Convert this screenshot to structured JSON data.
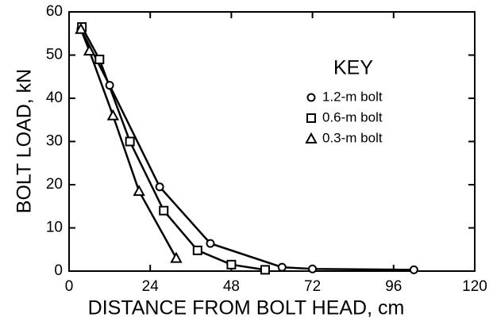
{
  "chart_data": {
    "type": "line",
    "xlabel": "DISTANCE FROM BOLT HEAD, cm",
    "ylabel": "BOLT LOAD, kN",
    "legend_title": "KEY",
    "legend_position": "upper right",
    "xlim": [
      0,
      120
    ],
    "xticks": [
      0,
      24,
      48,
      72,
      96,
      120
    ],
    "ylim": [
      0,
      60
    ],
    "yticks": [
      0,
      10,
      20,
      30,
      40,
      50,
      60
    ],
    "series": [
      {
        "name": "1.2-m bolt",
        "marker": "circle",
        "color": "#000000",
        "x": [
          3.5,
          12,
          26.8,
          41.8,
          63,
          72,
          102
        ],
        "values": [
          56,
          43,
          19.5,
          6.4,
          0.9,
          0.5,
          0.3
        ]
      },
      {
        "name": "0.6-m bolt",
        "marker": "square",
        "color": "#000000",
        "x": [
          3.8,
          9,
          18,
          28,
          38,
          48,
          58
        ],
        "values": [
          56.5,
          49,
          30,
          14,
          4.8,
          1.5,
          0.3
        ]
      },
      {
        "name": "0.3-m bolt",
        "marker": "triangle",
        "color": "#000000",
        "x": [
          3.5,
          6,
          13,
          20.7,
          31.7
        ],
        "values": [
          56,
          51,
          36,
          18.5,
          3
        ]
      }
    ]
  }
}
